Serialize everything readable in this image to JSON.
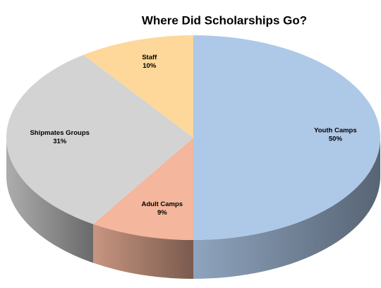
{
  "chart_data": {
    "type": "pie3d",
    "title": "Where Did Scholarships Go?",
    "categories": [
      "Youth Camps",
      "Adult Camps",
      "Shipmates Groups",
      "Staff"
    ],
    "values": [
      50,
      9,
      31,
      10
    ],
    "value_labels": [
      "50%",
      "9%",
      "31%",
      "10%"
    ],
    "colors": [
      "#aec8e8",
      "#f4b69c",
      "#d3d3d3",
      "#fdd89a"
    ]
  }
}
